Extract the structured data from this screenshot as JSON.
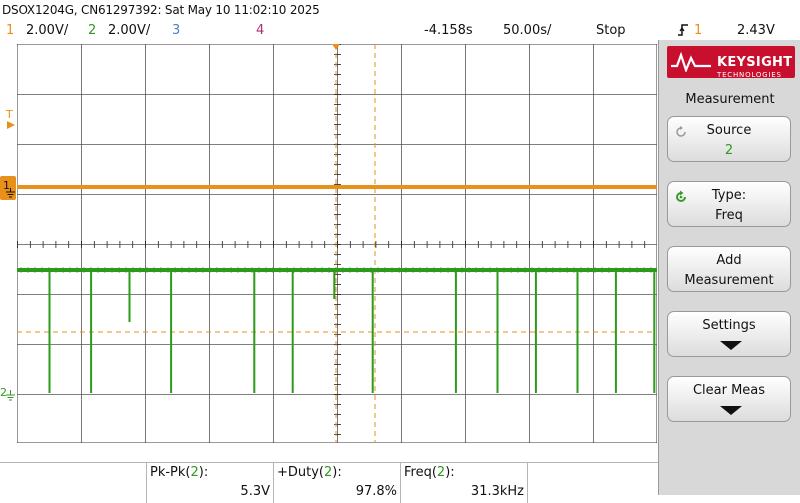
{
  "header": {
    "title": "DSOX1204G, CN61297392: Sat May 10 11:02:10 2025"
  },
  "status": {
    "ch1_num": "1",
    "ch1_scale": "2.00V/",
    "ch2_num": "2",
    "ch2_scale": "2.00V/",
    "ch3_num": "3",
    "ch4_num": "4",
    "delay": "-4.158s",
    "timebase": "50.00s/",
    "run_state": "Stop",
    "trigger_icon": "rising-edge-trigger-icon",
    "trigger_source": "1",
    "trigger_level": "2.43V"
  },
  "markers": {
    "trigger_marker": "T",
    "ch1_marker": "1",
    "ch2_marker": "2"
  },
  "side_panel": {
    "logo": {
      "brand": "KEYSIGHT",
      "sub": "TECHNOLOGIES"
    },
    "menu_title": "Measurement",
    "source_label": "Source",
    "source_value": "2",
    "type_label": "Type:",
    "type_value": "Freq",
    "add_line1": "Add",
    "add_line2": "Measurement",
    "settings_label": "Settings",
    "clear_label": "Clear Meas"
  },
  "measurements": [
    {
      "label_pre": "Pk-Pk(",
      "ch": "2",
      "label_post": "):",
      "value": "5.3V"
    },
    {
      "label_pre": "+Duty(",
      "ch": "2",
      "label_post": "):",
      "value": "97.8%"
    },
    {
      "label_pre": "Freq(",
      "ch": "2",
      "label_post": "):",
      "value": "31.3kHz"
    }
  ],
  "colors": {
    "ch1": "#e8901a",
    "ch2": "#2d9a1c",
    "ch3": "#4a7fc0",
    "ch4": "#b0306a",
    "grid": "#555555",
    "measure_value": "#3a8a1a"
  },
  "waveforms": {
    "ch1_level_volts": 2.43,
    "ch2_high_volts": 1.0,
    "ch2_low_volts": -4.3,
    "ch2_pulse_divs": [
      0.5,
      1.15,
      1.75,
      2.4,
      3.7,
      4.3,
      4.95,
      5.55,
      6.85,
      7.5,
      8.1,
      8.75,
      9.35,
      9.95
    ]
  }
}
